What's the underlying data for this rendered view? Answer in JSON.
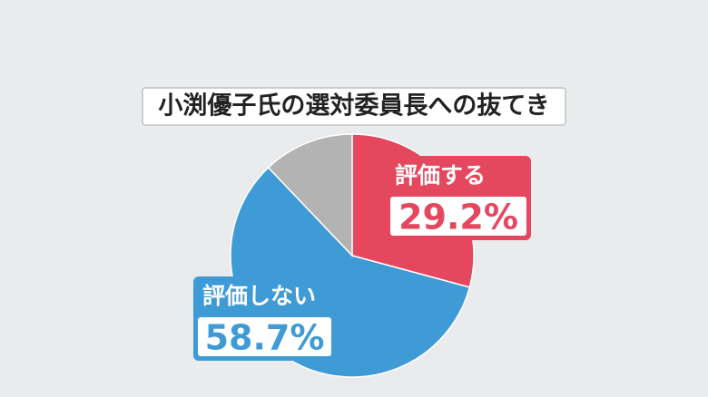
{
  "chart_data": {
    "type": "pie",
    "title": "小渕優子氏の選対委員長への抜てき",
    "categories": [
      "評価する",
      "評価しない",
      null
    ],
    "values": [
      29.2,
      58.7,
      12.1
    ],
    "value_labels": [
      "29.2%",
      "58.7%",
      null
    ],
    "colors": [
      "#e5475f",
      "#3f9bd6",
      "#b3b3b3"
    ]
  }
}
